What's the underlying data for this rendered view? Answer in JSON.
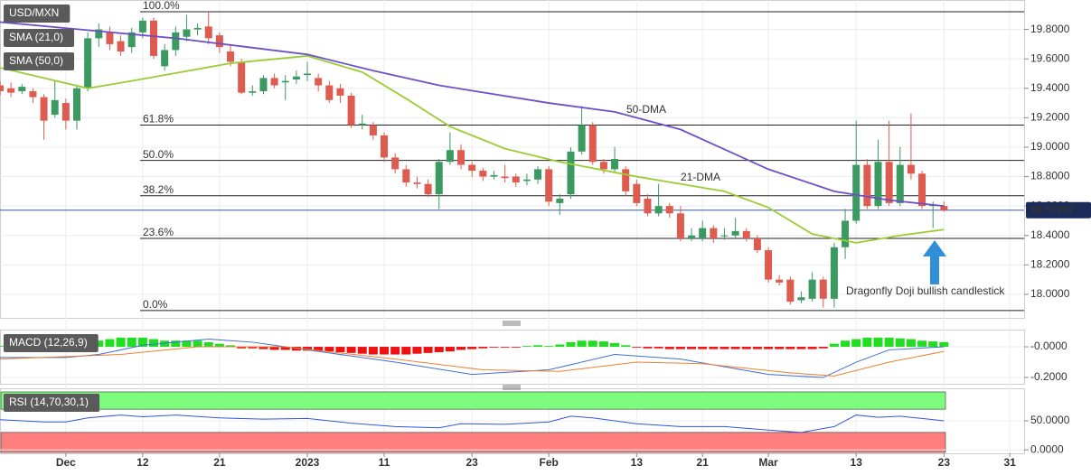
{
  "chart_data": [
    {
      "type": "candlestick",
      "title": "USD/MXN",
      "up_color": "#3a9a60",
      "down_color": "#de5b4f",
      "x": [
        -6,
        -5,
        -4,
        -3,
        -2,
        -1,
        0,
        1,
        2,
        3,
        4,
        5,
        6,
        7,
        8,
        9,
        10,
        11,
        12,
        13,
        14,
        15,
        16,
        17,
        18,
        19,
        20,
        21,
        22,
        23,
        24,
        25,
        26,
        27,
        28,
        29,
        30,
        31,
        32,
        33,
        34,
        35,
        36,
        37,
        38,
        39,
        40,
        41,
        42,
        43,
        44,
        45,
        46,
        47,
        48,
        49,
        50,
        51,
        52,
        53,
        54,
        55,
        56,
        57,
        58,
        59,
        60,
        61,
        62,
        63,
        64,
        65,
        66,
        67,
        68,
        69,
        70,
        71,
        72,
        73,
        74,
        75,
        76,
        77,
        78,
        79,
        80
      ],
      "open": [
        19.42,
        19.4,
        19.38,
        19.38,
        19.34,
        19.22,
        19.3,
        19.18,
        19.4,
        19.74,
        19.78,
        19.72,
        19.68,
        19.78,
        19.86,
        19.55,
        19.66,
        19.75,
        19.8,
        19.82,
        19.76,
        19.65,
        19.58,
        19.37,
        19.38,
        19.47,
        19.44,
        19.46,
        19.49,
        19.47,
        19.42,
        19.4,
        19.35,
        19.15,
        19.15,
        19.08,
        18.93,
        18.85,
        18.76,
        18.75,
        18.68,
        18.9,
        18.98,
        18.88,
        18.84,
        18.8,
        18.8,
        18.8,
        18.77,
        18.78,
        18.85,
        18.62,
        18.68,
        18.97,
        19.15,
        18.9,
        18.85,
        18.85,
        18.75,
        18.65,
        18.55,
        18.6,
        18.55,
        18.38,
        18.38,
        18.45,
        18.4,
        18.4,
        18.43,
        18.38,
        18.3,
        18.1,
        18.1,
        17.96,
        17.97,
        18.1,
        17.97,
        18.32,
        18.5,
        18.88,
        18.6,
        18.9,
        18.62,
        18.88,
        18.82,
        18.6,
        18.6
      ],
      "high": [
        19.45,
        19.44,
        19.43,
        19.4,
        19.36,
        19.45,
        19.33,
        19.42,
        19.78,
        19.84,
        19.82,
        19.76,
        19.81,
        19.88,
        19.88,
        19.7,
        19.82,
        19.9,
        19.84,
        19.92,
        19.78,
        19.7,
        19.6,
        19.42,
        19.49,
        19.5,
        19.49,
        19.52,
        19.58,
        19.5,
        19.45,
        19.43,
        19.37,
        19.22,
        19.17,
        19.1,
        18.96,
        18.88,
        18.8,
        18.78,
        18.92,
        19.1,
        19.02,
        18.9,
        18.86,
        18.84,
        18.88,
        18.82,
        18.82,
        18.87,
        18.87,
        18.68,
        19.0,
        19.28,
        19.17,
        18.92,
        19.0,
        18.87,
        18.78,
        18.68,
        18.75,
        18.62,
        18.6,
        18.45,
        18.5,
        18.47,
        18.45,
        18.52,
        18.45,
        18.4,
        18.32,
        18.13,
        18.12,
        18.02,
        18.15,
        18.12,
        18.35,
        18.58,
        19.18,
        18.92,
        19.05,
        19.18,
        19.0,
        19.23,
        18.84,
        18.63,
        18.63
      ],
      "low": [
        19.35,
        19.34,
        19.36,
        19.3,
        19.05,
        19.2,
        19.12,
        19.12,
        19.38,
        19.68,
        19.66,
        19.62,
        19.64,
        19.74,
        19.6,
        19.52,
        19.62,
        19.72,
        19.76,
        19.7,
        19.64,
        19.55,
        19.36,
        19.35,
        19.36,
        19.4,
        19.32,
        19.43,
        19.45,
        19.38,
        19.3,
        19.3,
        19.13,
        19.12,
        19.05,
        18.9,
        18.82,
        18.73,
        18.72,
        18.66,
        18.58,
        18.88,
        18.85,
        18.8,
        18.77,
        18.78,
        18.76,
        18.73,
        18.74,
        18.75,
        18.6,
        18.54,
        18.65,
        18.95,
        18.88,
        18.82,
        18.83,
        18.67,
        18.6,
        18.53,
        18.53,
        18.52,
        18.36,
        18.36,
        18.36,
        18.35,
        18.37,
        18.38,
        18.36,
        18.28,
        18.08,
        18.06,
        17.93,
        17.94,
        17.95,
        17.91,
        17.91,
        18.24,
        18.48,
        18.58,
        18.58,
        18.6,
        18.6,
        18.78,
        18.58,
        18.45,
        18.56
      ],
      "close": [
        19.38,
        19.37,
        19.41,
        19.34,
        19.18,
        19.32,
        19.18,
        19.4,
        19.74,
        19.8,
        19.7,
        19.65,
        19.78,
        19.86,
        19.62,
        19.66,
        19.78,
        19.8,
        19.81,
        19.74,
        19.68,
        19.58,
        19.37,
        19.38,
        19.47,
        19.42,
        19.45,
        19.48,
        19.5,
        19.42,
        19.32,
        19.35,
        19.15,
        19.16,
        19.08,
        18.93,
        18.85,
        18.76,
        18.75,
        18.68,
        18.9,
        18.98,
        18.88,
        18.84,
        18.8,
        18.81,
        18.79,
        18.76,
        18.78,
        18.85,
        18.63,
        18.65,
        18.97,
        19.15,
        18.9,
        18.85,
        18.92,
        18.7,
        18.62,
        18.55,
        18.6,
        18.55,
        18.38,
        18.4,
        18.45,
        18.38,
        18.4,
        18.43,
        18.38,
        18.3,
        18.1,
        18.08,
        17.95,
        17.98,
        18.1,
        17.97,
        18.32,
        18.5,
        18.88,
        18.6,
        18.9,
        18.62,
        18.88,
        18.82,
        18.6,
        18.61,
        18.57207
      ],
      "series": [
        {
          "name": "SMA (21,0)",
          "label": "21-DMA",
          "color": "#9acd32",
          "x": [
            -6,
            2,
            6,
            15,
            22,
            27,
            31,
            35,
            40,
            45,
            52,
            60,
            64,
            68,
            72,
            76,
            80
          ],
          "values": [
            19.54,
            19.4,
            19.45,
            19.57,
            19.62,
            19.51,
            19.33,
            19.14,
            18.99,
            18.9,
            18.8,
            18.7,
            18.59,
            18.41,
            18.35,
            18.4,
            18.44
          ]
        },
        {
          "name": "SMA (50,0)",
          "label": "50-DMA",
          "color": "#6f4fc8",
          "x": [
            -6,
            10,
            22,
            28,
            34,
            44,
            50,
            56,
            64,
            70,
            75,
            80
          ],
          "values": [
            19.85,
            19.74,
            19.63,
            19.52,
            19.42,
            19.3,
            19.24,
            19.12,
            18.85,
            18.7,
            18.64,
            18.6
          ]
        }
      ],
      "levels": [
        {
          "label": "100.0%",
          "value": 19.92
        },
        {
          "label": "61.8%",
          "value": 19.15
        },
        {
          "label": "50.0%",
          "value": 18.91
        },
        {
          "label": "38.2%",
          "value": 18.67
        },
        {
          "label": "23.6%",
          "value": 18.38
        },
        {
          "label": "0.0%",
          "value": 17.89
        }
      ],
      "last_price": 18.57207,
      "annotation": "Dragonfly Doji bullish candlestick",
      "xlim": [
        -6,
        87.3
      ],
      "ylim": [
        17.84,
        20.0
      ],
      "yticks": [
        {
          "value": 18.0,
          "label": "18.0000"
        },
        {
          "value": 18.2,
          "label": "18.2000"
        },
        {
          "value": 18.4,
          "label": "18.4000"
        },
        {
          "value": 18.6,
          "label": "18.6000"
        },
        {
          "value": 18.8,
          "label": "18.8000"
        },
        {
          "value": 19.0,
          "label": "19.0000"
        },
        {
          "value": 19.2,
          "label": "19.2000"
        },
        {
          "value": 19.4,
          "label": "19.4000"
        },
        {
          "value": 19.6,
          "label": "19.6000"
        },
        {
          "value": 19.8,
          "label": "19.8000"
        }
      ],
      "xticks": [
        {
          "value": 0,
          "label": "Dec"
        },
        {
          "value": 7,
          "label": "12"
        },
        {
          "value": 14,
          "label": "21"
        },
        {
          "value": 22,
          "label": "2023"
        },
        {
          "value": 29,
          "label": "11"
        },
        {
          "value": 37,
          "label": "23"
        },
        {
          "value": 44,
          "label": "Feb"
        },
        {
          "value": 52,
          "label": "13"
        },
        {
          "value": 58,
          "label": "21"
        },
        {
          "value": 64,
          "label": "Mar"
        },
        {
          "value": 72,
          "label": "13"
        },
        {
          "value": 80,
          "label": "23"
        },
        {
          "value": 86,
          "label": "31"
        }
      ],
      "grid": true
    },
    {
      "type": "macd",
      "title": "MACD (12,26,9)",
      "up_color": "#22dd22",
      "down_color": "#ee1111",
      "histogram": [
        0.005,
        0.005,
        0.005,
        0.005,
        0.005,
        0.005,
        0.005,
        0.005,
        0.005,
        0.04,
        0.05,
        0.06,
        0.06,
        0.06,
        0.05,
        0.04,
        0.04,
        0.04,
        0.04,
        0.03,
        0.02,
        0.01,
        -0.01,
        -0.01,
        -0.015,
        -0.02,
        -0.02,
        -0.025,
        -0.025,
        -0.03,
        -0.03,
        -0.035,
        -0.04,
        -0.045,
        -0.05,
        -0.05,
        -0.05,
        -0.05,
        -0.045,
        -0.04,
        -0.035,
        -0.03,
        -0.02,
        -0.015,
        -0.01,
        -0.005,
        -0.005,
        -0.005,
        0.005,
        0.01,
        0.005,
        0.015,
        0.03,
        0.04,
        0.04,
        0.035,
        0.025,
        0.01,
        -0.005,
        -0.01,
        -0.01,
        -0.015,
        -0.015,
        -0.015,
        -0.015,
        -0.015,
        -0.015,
        -0.015,
        -0.015,
        -0.015,
        -0.015,
        -0.015,
        -0.015,
        -0.015,
        -0.015,
        -0.01,
        0.02,
        0.04,
        0.05,
        0.06,
        0.06,
        0.06,
        0.055,
        0.05,
        0.04,
        0.035,
        0.03
      ],
      "series": [
        {
          "name": "MACD",
          "color": "#3d6fd8",
          "x": [
            -6,
            0,
            3,
            7,
            13,
            17,
            22,
            30,
            37,
            44,
            50,
            56,
            64,
            69,
            72,
            75,
            80
          ],
          "values": [
            -0.07,
            -0.07,
            -0.05,
            0.01,
            0.05,
            0.03,
            -0.02,
            -0.1,
            -0.18,
            -0.15,
            -0.05,
            -0.08,
            -0.18,
            -0.2,
            -0.1,
            -0.02,
            0.0
          ]
        },
        {
          "name": "Signal",
          "color": "#f08030",
          "x": [
            -6,
            5,
            12,
            20,
            30,
            38,
            45,
            52,
            58,
            66,
            70,
            75,
            80
          ],
          "values": [
            -0.08,
            -0.05,
            0.0,
            0.0,
            -0.08,
            -0.15,
            -0.16,
            -0.1,
            -0.11,
            -0.17,
            -0.19,
            -0.1,
            -0.03
          ]
        }
      ],
      "ylim": [
        -0.241,
        0.112
      ],
      "yticks": [
        {
          "value": 0,
          "label": "-0.0000"
        },
        {
          "value": -0.2,
          "label": "-0.2000"
        }
      ]
    },
    {
      "type": "rsi",
      "title": "RSI (14,70,30,1)",
      "overbought": 70,
      "oversold": 30,
      "overbought_color": "#7dfc7d",
      "oversold_color": "#ff7f7f",
      "series": [
        {
          "name": "RSI",
          "color": "#3355dd",
          "x": [
            -6,
            -2,
            0,
            2,
            5,
            7,
            10,
            14,
            18,
            22,
            26,
            30,
            34,
            36,
            40,
            44,
            46,
            48,
            52,
            56,
            60,
            64,
            67,
            70,
            72,
            74,
            76,
            78,
            80
          ],
          "values": [
            52,
            48,
            48,
            55,
            60,
            57,
            60,
            55,
            53,
            54,
            46,
            40,
            38,
            45,
            44,
            48,
            58,
            55,
            45,
            40,
            40,
            34,
            30,
            40,
            60,
            56,
            58,
            54,
            50
          ]
        }
      ],
      "ylim": [
        -6,
        106
      ],
      "yticks": [
        {
          "value": 50,
          "label": "50.0000"
        },
        {
          "value": 0,
          "label": "0.0000"
        }
      ]
    }
  ]
}
